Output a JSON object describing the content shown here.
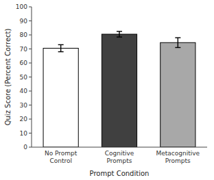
{
  "chart_data": {
    "type": "bar",
    "categories": [
      "No Prompt\nControl",
      "Cognitive\nPrompts",
      "Metacognitive\nPrompts"
    ],
    "values": [
      70.5,
      80.5,
      74.5
    ],
    "errors": [
      2.5,
      2.0,
      3.5
    ],
    "colors": [
      "#ffffff",
      "#404040",
      "#a8a8a8"
    ],
    "xlabel": "Prompt Condition",
    "ylabel": "Quiz Score (Percent Correct)",
    "ylim": [
      0,
      100
    ],
    "yticks": [
      0,
      10,
      20,
      30,
      40,
      50,
      60,
      70,
      80,
      90,
      100
    ]
  }
}
